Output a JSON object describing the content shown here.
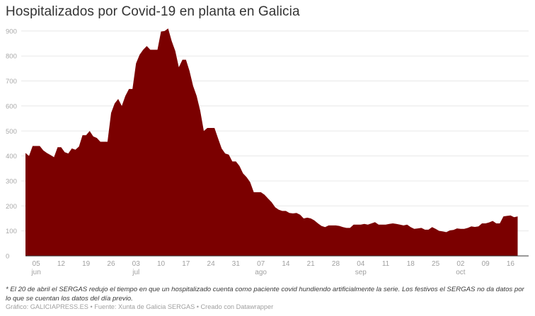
{
  "title": "Hospitalizados por Covid-19 en planta en Galicia",
  "note": "* El 20 de abril el SERGAS redujo el tiempo en que un hospitalizado cuenta como paciente covid hundiendo artificialmente la serie. Los festivos el SERGAS no da datos por lo que se cuentan los datos del día previo.",
  "credit": "Gráfico: GALICIAPRESS.ES • Fuente: Xunta de Galicia SERGAS • Creado con Datawrapper",
  "colors": {
    "area": "#7b0000",
    "grid": "#e8e8e8",
    "axis": "#333333"
  },
  "chart_data": {
    "type": "area",
    "title": "Hospitalizados por Covid-19 en planta en Galicia",
    "xlabel": "",
    "ylabel": "",
    "ylim": [
      0,
      900
    ],
    "yticks": [
      0,
      100,
      200,
      300,
      400,
      500,
      600,
      700,
      800,
      900
    ],
    "grid": true,
    "x_start": "jun 02",
    "x_end": "oct 19",
    "xticks": [
      {
        "label": "05",
        "month": "jun",
        "day": 3
      },
      {
        "label": "12",
        "month": "",
        "day": 10
      },
      {
        "label": "19",
        "month": "",
        "day": 17
      },
      {
        "label": "26",
        "month": "",
        "day": 24
      },
      {
        "label": "03",
        "month": "jul",
        "day": 31
      },
      {
        "label": "10",
        "month": "",
        "day": 38
      },
      {
        "label": "17",
        "month": "",
        "day": 45
      },
      {
        "label": "24",
        "month": "",
        "day": 52
      },
      {
        "label": "31",
        "month": "",
        "day": 59
      },
      {
        "label": "07",
        "month": "ago",
        "day": 66
      },
      {
        "label": "14",
        "month": "",
        "day": 73
      },
      {
        "label": "21",
        "month": "",
        "day": 80
      },
      {
        "label": "28",
        "month": "",
        "day": 87
      },
      {
        "label": "04",
        "month": "sep",
        "day": 94
      },
      {
        "label": "11",
        "month": "",
        "day": 101
      },
      {
        "label": "18",
        "month": "",
        "day": 108
      },
      {
        "label": "25",
        "month": "",
        "day": 115
      },
      {
        "label": "02",
        "month": "oct",
        "day": 122
      },
      {
        "label": "09",
        "month": "",
        "day": 129
      },
      {
        "label": "16",
        "month": "",
        "day": 136
      }
    ],
    "values": [
      412,
      400,
      440,
      440,
      440,
      422,
      412,
      404,
      395,
      435,
      435,
      415,
      410,
      430,
      425,
      438,
      483,
      483,
      500,
      478,
      472,
      457,
      457,
      457,
      572,
      610,
      628,
      600,
      640,
      668,
      668,
      770,
      805,
      825,
      840,
      825,
      825,
      825,
      898,
      900,
      910,
      860,
      820,
      755,
      785,
      785,
      740,
      680,
      640,
      580,
      500,
      512,
      512,
      512,
      470,
      430,
      410,
      405,
      378,
      378,
      360,
      330,
      315,
      295,
      255,
      255,
      255,
      245,
      230,
      215,
      195,
      185,
      180,
      180,
      172,
      170,
      172,
      165,
      150,
      153,
      150,
      142,
      130,
      120,
      115,
      122,
      122,
      122,
      120,
      115,
      112,
      112,
      125,
      125,
      125,
      128,
      125,
      130,
      135,
      125,
      125,
      125,
      128,
      130,
      128,
      125,
      122,
      125,
      115,
      108,
      110,
      112,
      105,
      105,
      115,
      108,
      100,
      98,
      95,
      102,
      104,
      110,
      108,
      108,
      112,
      118,
      116,
      118,
      130,
      130,
      134,
      140,
      130,
      130,
      158,
      160,
      162,
      155,
      158
    ]
  }
}
